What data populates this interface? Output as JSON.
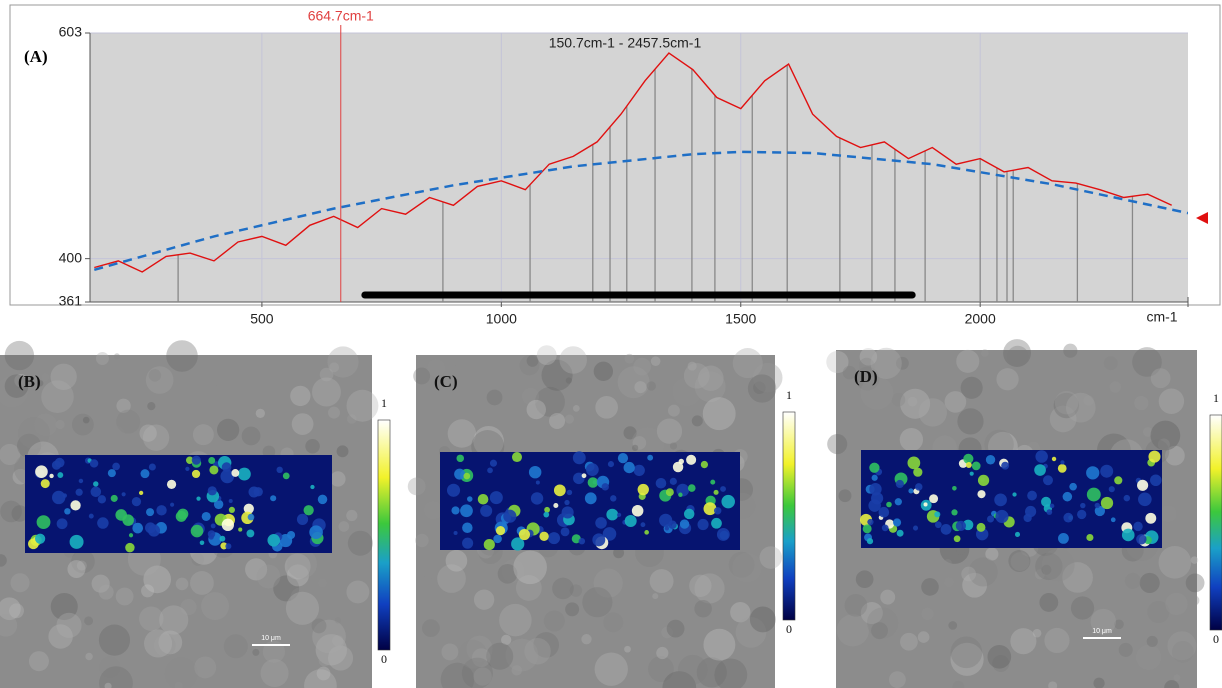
{
  "panel_label": "(A)",
  "chart_data": {
    "type": "line",
    "cursor": {
      "value": 664.7,
      "label": "664.7cm-1"
    },
    "range_label": "150.7cm-1 - 2457.5cm-1",
    "x_unit": "cm-1",
    "xlim": [
      141,
      2434
    ],
    "ylim": [
      361,
      603
    ],
    "xticks": [
      500,
      1000,
      1500,
      2000
    ],
    "yticks": [
      361,
      400,
      603
    ],
    "grid": true,
    "series": [
      {
        "color": "#e01010",
        "dashed": false,
        "x": [
          150,
          200,
          250,
          300,
          350,
          400,
          450,
          500,
          550,
          600,
          650,
          700,
          750,
          800,
          850,
          900,
          950,
          1000,
          1050,
          1100,
          1150,
          1200,
          1250,
          1300,
          1350,
          1400,
          1450,
          1500,
          1550,
          1600,
          1650,
          1700,
          1750,
          1800,
          1850,
          1900,
          1950,
          2000,
          2050,
          2100,
          2150,
          2200,
          2250,
          2300,
          2350,
          2400
        ],
        "values": [
          392,
          398,
          388,
          402,
          405,
          398,
          415,
          420,
          412,
          430,
          438,
          428,
          445,
          440,
          455,
          448,
          465,
          470,
          462,
          485,
          492,
          505,
          530,
          560,
          585,
          570,
          545,
          535,
          560,
          575,
          530,
          510,
          500,
          505,
          490,
          500,
          485,
          490,
          478,
          482,
          470,
          468,
          462,
          455,
          458,
          448
        ]
      },
      {
        "color": "#1f6fc6",
        "dashed": true,
        "x": [
          150,
          400,
          650,
          900,
          1150,
          1400,
          1500,
          1650,
          1900,
          2150,
          2434
        ],
        "values": [
          390,
          420,
          445,
          466,
          483,
          494,
          496,
          495,
          485,
          467,
          441
        ]
      }
    ],
    "peak_markers": [
      325,
      878,
      1060,
      1191,
      1227,
      1262,
      1321,
      1398,
      1446,
      1524,
      1597,
      1707,
      1774,
      1822,
      1885,
      2000,
      2035,
      2056,
      2069,
      2203,
      2318
    ],
    "range_bar": [
      715,
      1858
    ]
  },
  "panels": [
    {
      "label": "(B)",
      "colorbar_max": "1",
      "colorbar_min": "0",
      "scale_bar": "10 μm"
    },
    {
      "label": "(C)",
      "colorbar_max": "1",
      "colorbar_min": "0"
    },
    {
      "label": "(D)",
      "colorbar_max": "1",
      "colorbar_min": "0",
      "scale_bar": "10 μm"
    }
  ]
}
